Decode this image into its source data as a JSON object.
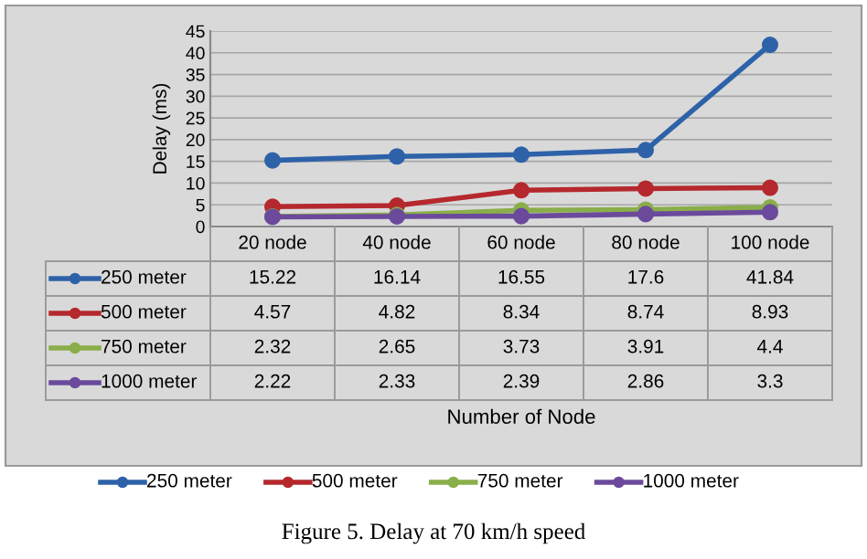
{
  "chart_data": {
    "type": "line",
    "ylabel": "Delay (ms)",
    "categories": [
      "20 node",
      "40 node",
      "60 node",
      "80 node",
      "100 node"
    ],
    "series": [
      {
        "name": "250 meter",
        "color": "#2e62a8",
        "values": [
          15.22,
          16.14,
          16.55,
          17.6,
          41.84
        ]
      },
      {
        "name": "500 meter",
        "color": "#b5282d",
        "values": [
          4.57,
          4.82,
          8.34,
          8.74,
          8.93
        ]
      },
      {
        "name": "750 meter",
        "color": "#8aae4a",
        "values": [
          2.32,
          2.65,
          3.73,
          3.91,
          4.4
        ]
      },
      {
        "name": "1000 meter",
        "color": "#6b4a9c",
        "values": [
          2.22,
          2.33,
          2.39,
          2.86,
          3.3
        ]
      }
    ],
    "ylim": [
      0,
      45
    ],
    "yticks": [
      0,
      5,
      10,
      15,
      20,
      25,
      30,
      35,
      40,
      45
    ],
    "grid": "y",
    "legend": "bottom",
    "marker": "circle",
    "line_style": "solid",
    "data_labels": true,
    "annotations": [
      "Number of Node",
      "Figure 5. Delay at 70 km/h speed"
    ]
  }
}
